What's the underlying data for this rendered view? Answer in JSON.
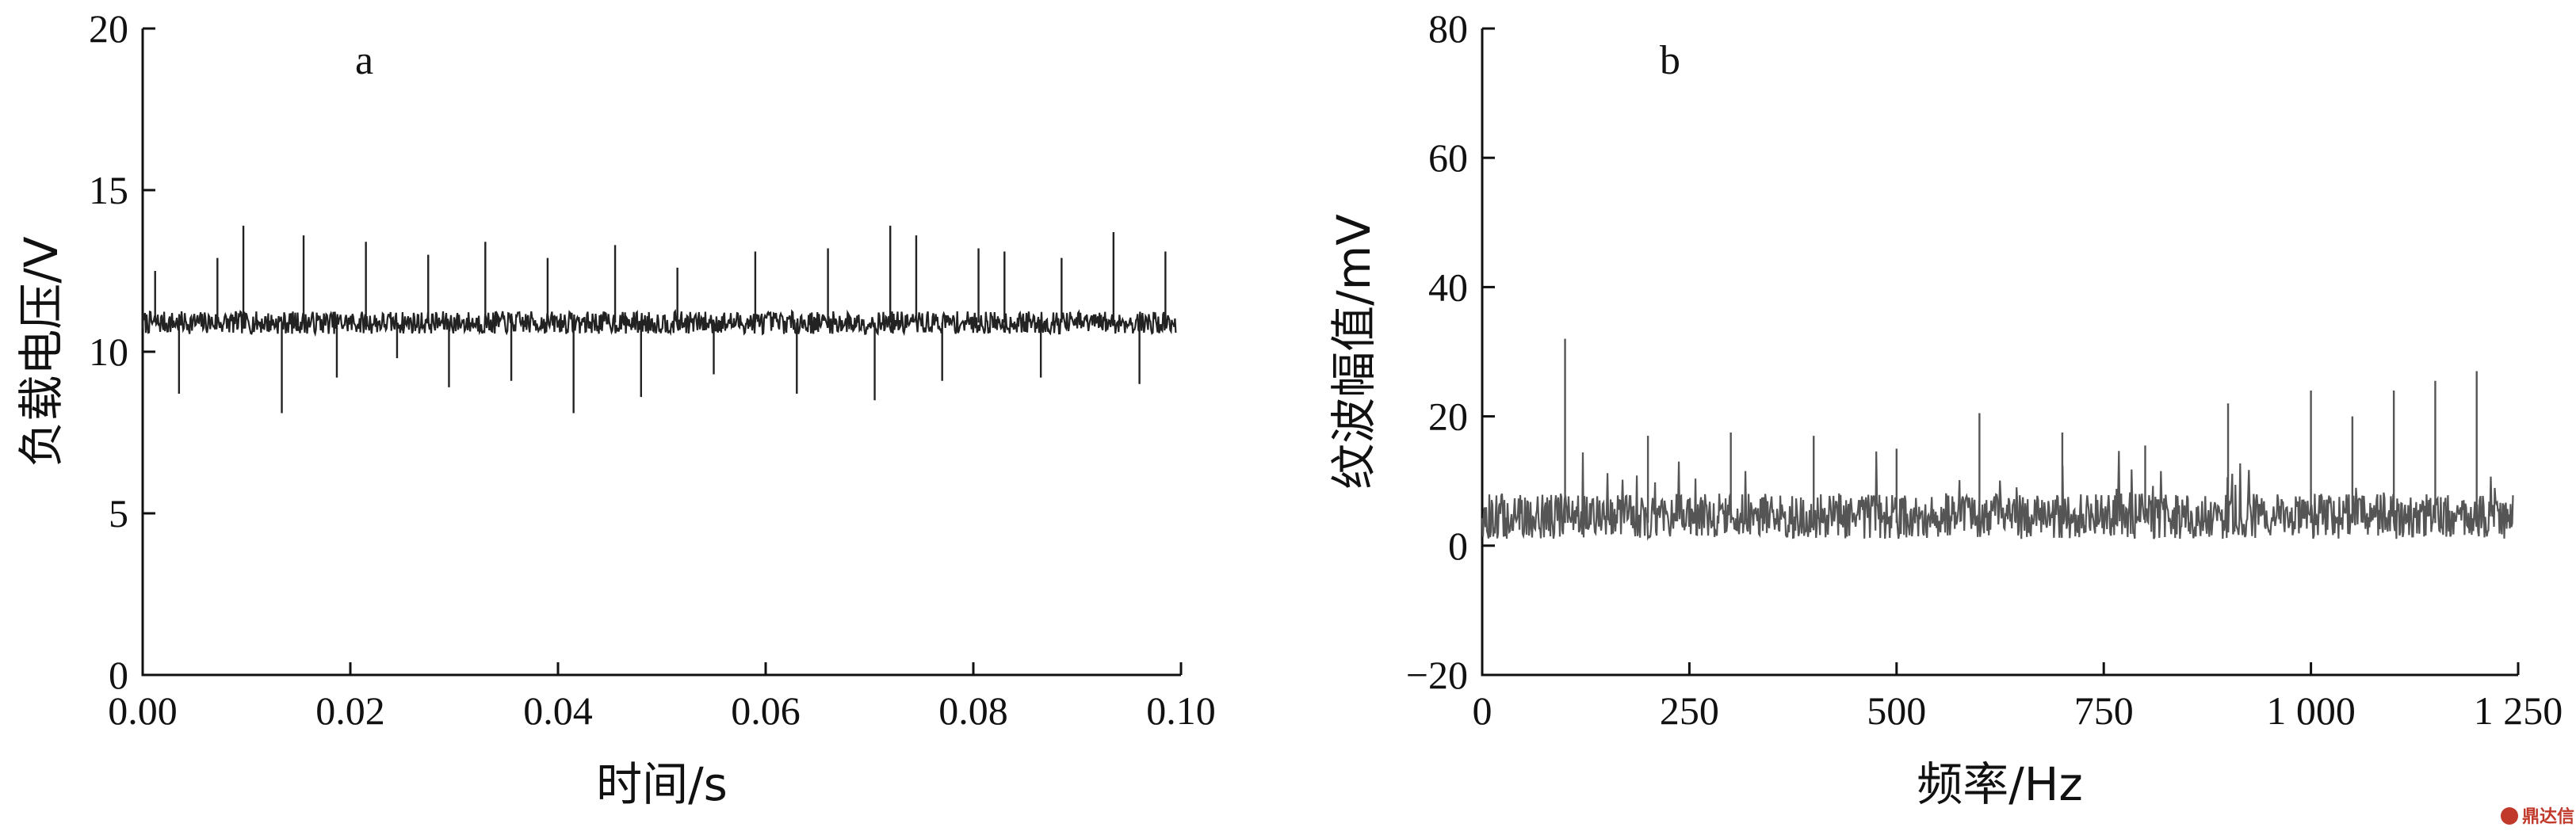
{
  "chart_data": [
    {
      "type": "line",
      "panel_label": "a",
      "title": "",
      "xlabel": "时间/s",
      "ylabel": "负载电压/V",
      "xlim": [
        0.0,
        0.1
      ],
      "ylim": [
        0,
        20
      ],
      "xticks": [
        "0.00",
        "0.02",
        "0.04",
        "0.06",
        "0.08",
        "0.10"
      ],
      "yticks": [
        "0",
        "5",
        "10",
        "15",
        "20"
      ],
      "grid": false,
      "series": [
        {
          "baseline": 10.9,
          "noise": 0.35,
          "spikes": [
            {
              "x": 0.0012,
              "y": 12.5
            },
            {
              "x": 0.0035,
              "y": 8.7
            },
            {
              "x": 0.0072,
              "y": 12.9
            },
            {
              "x": 0.0097,
              "y": 13.9
            },
            {
              "x": 0.0134,
              "y": 8.1
            },
            {
              "x": 0.0155,
              "y": 13.6
            },
            {
              "x": 0.0187,
              "y": 9.2
            },
            {
              "x": 0.0215,
              "y": 13.4
            },
            {
              "x": 0.0245,
              "y": 9.8
            },
            {
              "x": 0.0275,
              "y": 13.0
            },
            {
              "x": 0.0295,
              "y": 8.9
            },
            {
              "x": 0.033,
              "y": 13.4
            },
            {
              "x": 0.0355,
              "y": 9.1
            },
            {
              "x": 0.039,
              "y": 12.9
            },
            {
              "x": 0.0415,
              "y": 8.1
            },
            {
              "x": 0.0455,
              "y": 13.3
            },
            {
              "x": 0.048,
              "y": 8.6
            },
            {
              "x": 0.0515,
              "y": 12.6
            },
            {
              "x": 0.055,
              "y": 9.3
            },
            {
              "x": 0.059,
              "y": 13.1
            },
            {
              "x": 0.063,
              "y": 8.7
            },
            {
              "x": 0.066,
              "y": 13.2
            },
            {
              "x": 0.0705,
              "y": 8.5
            },
            {
              "x": 0.072,
              "y": 13.9
            },
            {
              "x": 0.0745,
              "y": 13.6
            },
            {
              "x": 0.077,
              "y": 9.1
            },
            {
              "x": 0.0805,
              "y": 13.2
            },
            {
              "x": 0.083,
              "y": 13.1
            },
            {
              "x": 0.0865,
              "y": 9.2
            },
            {
              "x": 0.0885,
              "y": 12.9
            },
            {
              "x": 0.0935,
              "y": 13.7
            },
            {
              "x": 0.096,
              "y": 9.0
            },
            {
              "x": 0.0985,
              "y": 13.1
            }
          ]
        }
      ]
    },
    {
      "type": "line",
      "panel_label": "b",
      "title": "",
      "xlabel": "频率/Hz",
      "ylabel": "纹波幅值/mV",
      "xlim": [
        0,
        1250
      ],
      "ylim": [
        -20,
        80
      ],
      "xticks": [
        "0",
        "250",
        "500",
        "750",
        "1 000",
        "1 250"
      ],
      "yticks": [
        "−20",
        "0",
        "20",
        "40",
        "60",
        "80"
      ],
      "grid": false,
      "series": [
        {
          "baseline": 3.5,
          "noise": 3.5,
          "spikes": [
            {
              "x": 100,
              "y": 32
            },
            {
              "x": 200,
              "y": 17
            },
            {
              "x": 300,
              "y": 17.5
            },
            {
              "x": 400,
              "y": 17
            },
            {
              "x": 500,
              "y": 15
            },
            {
              "x": 600,
              "y": 20.5
            },
            {
              "x": 700,
              "y": 17.5
            },
            {
              "x": 800,
              "y": 15.5
            },
            {
              "x": 900,
              "y": 22
            },
            {
              "x": 1000,
              "y": 24
            },
            {
              "x": 1050,
              "y": 20
            },
            {
              "x": 1100,
              "y": 24
            },
            {
              "x": 1150,
              "y": 25.5
            },
            {
              "x": 1200,
              "y": 27
            }
          ]
        }
      ]
    }
  ],
  "watermark": "鼎达信"
}
